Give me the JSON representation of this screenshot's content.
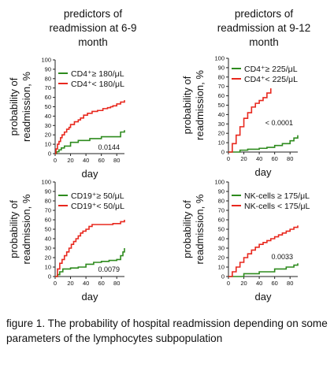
{
  "columns": [
    {
      "title_lines": [
        "predictors of",
        "readmission at 6-9",
        "month"
      ]
    },
    {
      "title_lines": [
        "predictors of",
        "readmission at 9-12",
        "month"
      ]
    }
  ],
  "caption": "figure 1. The probability of hospital readmission depending on some parameters of the lymphocytes subpopulation",
  "colors": {
    "green": "#2e8b1e",
    "red": "#e8281e"
  },
  "chart_data": [
    {
      "type": "line",
      "step": true,
      "xlabel": "day",
      "ylabel_lines": [
        "probability of",
        "readmission, %"
      ],
      "xlim": [
        0,
        90
      ],
      "ylim": [
        0,
        100
      ],
      "xticks": [
        0,
        20,
        40,
        60,
        80
      ],
      "yticks": [
        0,
        10,
        20,
        30,
        40,
        50,
        60,
        70,
        80,
        90,
        100
      ],
      "p_value": "0.0144",
      "legend_position": "top-left",
      "series": [
        {
          "name": "CD4⁺≥ 180/μL",
          "color": "#2e8b1e",
          "x": [
            0,
            2,
            5,
            8,
            12,
            20,
            30,
            45,
            60,
            85,
            90
          ],
          "y": [
            0,
            2,
            4,
            6,
            8,
            12,
            14,
            16,
            18,
            23,
            25
          ]
        },
        {
          "name": "CD4⁺< 180/μL",
          "color": "#e8281e",
          "x": [
            0,
            1,
            3,
            5,
            7,
            9,
            12,
            15,
            18,
            20,
            25,
            30,
            33,
            37,
            42,
            48,
            55,
            62,
            68,
            72,
            75,
            80,
            85,
            90
          ],
          "y": [
            0,
            5,
            10,
            13,
            17,
            20,
            23,
            26,
            28,
            31,
            34,
            36,
            38,
            41,
            43,
            45,
            46,
            48,
            49,
            50,
            51,
            53,
            55,
            57
          ]
        }
      ]
    },
    {
      "type": "line",
      "step": true,
      "xlabel": "day",
      "ylabel_lines": [
        "probability of",
        "readmission, %"
      ],
      "xlim": [
        0,
        90
      ],
      "ylim": [
        0,
        100
      ],
      "xticks": [
        0,
        20,
        40,
        60,
        80
      ],
      "yticks": [
        0,
        10,
        20,
        30,
        40,
        50,
        60,
        70,
        80,
        90,
        100
      ],
      "p_value": "< 0.0001",
      "legend_position": "top-left",
      "series": [
        {
          "name": "CD4⁺≥ 225/μL",
          "color": "#2e8b1e",
          "x": [
            0,
            15,
            25,
            40,
            50,
            60,
            70,
            80,
            85,
            90
          ],
          "y": [
            0,
            2,
            3,
            4,
            5,
            7,
            9,
            12,
            15,
            18
          ]
        },
        {
          "name": "CD4⁺< 225/μL",
          "color": "#e8281e",
          "x": [
            0,
            5,
            10,
            15,
            20,
            25,
            30,
            35,
            40,
            45,
            50,
            55
          ],
          "y": [
            0,
            9,
            18,
            27,
            36,
            42,
            48,
            52,
            55,
            58,
            63,
            68
          ]
        }
      ]
    },
    {
      "type": "line",
      "step": true,
      "xlabel": "day",
      "ylabel_lines": [
        "probability of",
        "readmission, %"
      ],
      "xlim": [
        0,
        90
      ],
      "ylim": [
        0,
        100
      ],
      "xticks": [
        0,
        20,
        40,
        60,
        80
      ],
      "yticks": [
        0,
        10,
        20,
        30,
        40,
        50,
        60,
        70,
        80,
        90,
        100
      ],
      "p_value": "0.0079",
      "legend_position": "top-left",
      "series": [
        {
          "name": "CD19⁺≥ 50/μL",
          "color": "#2e8b1e",
          "x": [
            0,
            3,
            6,
            10,
            20,
            30,
            40,
            50,
            60,
            70,
            80,
            85,
            88,
            90
          ],
          "y": [
            0,
            2,
            5,
            8,
            9,
            10,
            13,
            15,
            16,
            17,
            18,
            22,
            26,
            30
          ]
        },
        {
          "name": "CD19⁺< 50/μL",
          "color": "#e8281e",
          "x": [
            0,
            3,
            6,
            9,
            12,
            15,
            18,
            21,
            24,
            27,
            30,
            33,
            36,
            40,
            44,
            48,
            55,
            65,
            75,
            85,
            90
          ],
          "y": [
            0,
            8,
            14,
            18,
            22,
            26,
            30,
            34,
            37,
            40,
            43,
            46,
            48,
            50,
            53,
            55,
            55,
            55,
            56,
            58,
            60
          ]
        }
      ]
    },
    {
      "type": "line",
      "step": true,
      "xlabel": "day",
      "ylabel_lines": [
        "probability of",
        "readmission, %"
      ],
      "xlim": [
        0,
        90
      ],
      "ylim": [
        0,
        100
      ],
      "xticks": [
        0,
        20,
        40,
        60,
        80
      ],
      "yticks": [
        0,
        10,
        20,
        30,
        40,
        50,
        60,
        70,
        80,
        90,
        100
      ],
      "p_value": "0.0033",
      "legend_position": "top-left",
      "series": [
        {
          "name": "NK-cells ≥ 175/μL",
          "color": "#2e8b1e",
          "x": [
            0,
            20,
            40,
            60,
            75,
            85,
            90
          ],
          "y": [
            0,
            3,
            5,
            8,
            10,
            12,
            14
          ]
        },
        {
          "name": "NK-cells < 175/μL",
          "color": "#e8281e",
          "x": [
            0,
            5,
            10,
            15,
            20,
            25,
            30,
            35,
            40,
            45,
            50,
            55,
            60,
            65,
            70,
            75,
            80,
            85,
            90
          ],
          "y": [
            0,
            5,
            10,
            15,
            20,
            24,
            28,
            31,
            34,
            36,
            38,
            40,
            42,
            44,
            46,
            48,
            50,
            52,
            54
          ]
        }
      ]
    }
  ]
}
